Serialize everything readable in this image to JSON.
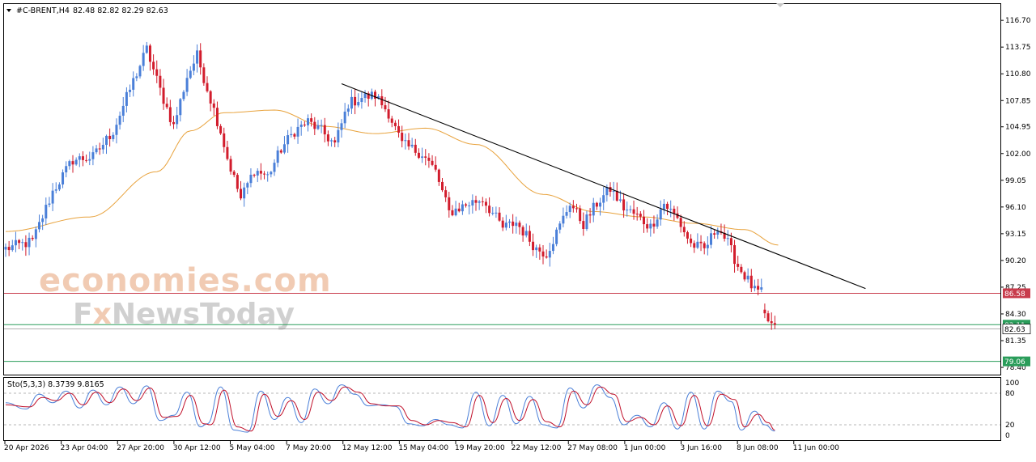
{
  "header": {
    "symbol": "#C-BRENT,H4",
    "ohlc": "82.48 82.82 82.29 82.63",
    "dropdown_icon": "triangle-down-icon"
  },
  "watermark": {
    "line1": "economies.com",
    "line2": "FxNewsToday",
    "line2_prefix": "F",
    "line2_mark": "x",
    "line2_rest": "NewsToday"
  },
  "oscillator": {
    "label": "Sto(5,3,3) 8.3739 9.8165",
    "levels": [
      80,
      20
    ],
    "ticks": [
      "100",
      "80",
      "20",
      "0"
    ],
    "colors": {
      "main": "#4a7fd8",
      "signal": "#c0102a",
      "level_line": "#a0a0a0"
    }
  },
  "colors": {
    "bull": "#4a7fd8",
    "bear": "#d21c2c",
    "ma": "#e8a23c",
    "trendline": "#000000",
    "resistance": "#c83c4c",
    "support": "#2a9d5a",
    "price_line": "#808080"
  },
  "chart_data": {
    "type": "candlestick",
    "title": "#C-BRENT,H4",
    "price_axis_labels": [
      "116.70",
      "113.75",
      "110.80",
      "107.85",
      "104.95",
      "102.00",
      "99.05",
      "96.10",
      "93.15",
      "90.20",
      "87.25",
      "84.30",
      "81.35",
      "78.40"
    ],
    "ylim": [
      77.6,
      118.5
    ],
    "x_labels": [
      "20 Apr 2026",
      "23 Apr 04:00",
      "27 Apr 20:00",
      "30 Apr 12:00",
      "5 May 04:00",
      "7 May 20:00",
      "12 May 12:00",
      "15 May 04:00",
      "19 May 20:00",
      "22 May 12:00",
      "27 May 08:00",
      "1 Jun 00:00",
      "3 Jun 16:00",
      "8 Jun 08:00",
      "11 Jun 00:00"
    ],
    "current_price": 82.63,
    "horizontal_levels": [
      {
        "label": "86.58",
        "value": 86.58,
        "kind": "resistance"
      },
      {
        "label": "83.11",
        "value": 83.11,
        "kind": "support"
      },
      {
        "label": "79.06",
        "value": 79.06,
        "kind": "support"
      }
    ],
    "current_price_label": "82.63",
    "trendline": {
      "from": [
        100,
        109.7
      ],
      "to": [
        256,
        87.1
      ]
    },
    "anchors": [
      [
        0,
        91.5
      ],
      [
        8,
        92.3
      ],
      [
        14,
        97.8
      ],
      [
        20,
        101.3
      ],
      [
        26,
        101.6
      ],
      [
        32,
        104.5
      ],
      [
        38,
        110.0
      ],
      [
        42,
        113.5
      ],
      [
        46,
        109.0
      ],
      [
        50,
        105.0
      ],
      [
        54,
        110.5
      ],
      [
        57,
        112.8
      ],
      [
        61,
        108.0
      ],
      [
        64,
        104.5
      ],
      [
        66,
        101.5
      ],
      [
        70,
        97.0
      ],
      [
        74,
        100.2
      ],
      [
        78,
        99.5
      ],
      [
        82,
        102.5
      ],
      [
        86,
        104.5
      ],
      [
        90,
        105.5
      ],
      [
        94,
        104.5
      ],
      [
        98,
        103.0
      ],
      [
        102,
        107.5
      ],
      [
        106,
        108.2
      ],
      [
        110,
        108.4
      ],
      [
        114,
        106.5
      ],
      [
        118,
        103.0
      ],
      [
        124,
        102.0
      ],
      [
        128,
        100.0
      ],
      [
        132,
        95.5
      ],
      [
        138,
        96.5
      ],
      [
        142,
        97.0
      ],
      [
        148,
        93.8
      ],
      [
        152,
        94.4
      ],
      [
        158,
        91.5
      ],
      [
        161,
        91.0
      ],
      [
        165,
        94.0
      ],
      [
        168,
        96.6
      ],
      [
        172,
        94.2
      ],
      [
        176,
        96.5
      ],
      [
        180,
        98.1
      ],
      [
        184,
        96.0
      ],
      [
        188,
        95.1
      ],
      [
        192,
        93.9
      ],
      [
        196,
        96.5
      ],
      [
        200,
        94.8
      ],
      [
        204,
        92.0
      ],
      [
        208,
        91.4
      ],
      [
        212,
        94.0
      ],
      [
        215,
        92.1
      ],
      [
        218,
        89.6
      ],
      [
        221,
        88.0
      ],
      [
        223,
        86.8
      ],
      [
        225,
        86.6
      ],
      [
        226,
        84.0
      ],
      [
        229,
        82.6
      ]
    ],
    "gap_after_index": 225,
    "ma_series": [
      [
        0,
        93.4
      ],
      [
        25,
        95.0
      ],
      [
        45,
        100.0
      ],
      [
        55,
        104.5
      ],
      [
        65,
        106.5
      ],
      [
        80,
        106.8
      ],
      [
        95,
        105.0
      ],
      [
        110,
        104.2
      ],
      [
        125,
        104.8
      ],
      [
        140,
        103.0
      ],
      [
        160,
        97.5
      ],
      [
        175,
        95.6
      ],
      [
        190,
        95.0
      ],
      [
        205,
        94.3
      ],
      [
        220,
        93.6
      ],
      [
        230,
        91.9
      ]
    ],
    "stochastic": {
      "main": [
        [
          0,
          62
        ],
        [
          6,
          50
        ],
        [
          10,
          78
        ],
        [
          14,
          62
        ],
        [
          18,
          84
        ],
        [
          22,
          52
        ],
        [
          26,
          86
        ],
        [
          30,
          58
        ],
        [
          34,
          92
        ],
        [
          38,
          60
        ],
        [
          42,
          94
        ],
        [
          46,
          28
        ],
        [
          50,
          38
        ],
        [
          54,
          82
        ],
        [
          58,
          16
        ],
        [
          60,
          22
        ],
        [
          64,
          92
        ],
        [
          68,
          10
        ],
        [
          72,
          6
        ],
        [
          76,
          84
        ],
        [
          80,
          30
        ],
        [
          84,
          72
        ],
        [
          88,
          24
        ],
        [
          92,
          88
        ],
        [
          96,
          60
        ],
        [
          100,
          96
        ],
        [
          104,
          78
        ],
        [
          108,
          56
        ],
        [
          112,
          58
        ],
        [
          116,
          55
        ],
        [
          120,
          22
        ],
        [
          124,
          18
        ],
        [
          128,
          30
        ],
        [
          132,
          20
        ],
        [
          136,
          14
        ],
        [
          140,
          82
        ],
        [
          144,
          18
        ],
        [
          148,
          76
        ],
        [
          152,
          22
        ],
        [
          156,
          74
        ],
        [
          160,
          20
        ],
        [
          164,
          14
        ],
        [
          168,
          90
        ],
        [
          172,
          52
        ],
        [
          176,
          96
        ],
        [
          180,
          72
        ],
        [
          184,
          20
        ],
        [
          188,
          38
        ],
        [
          192,
          16
        ],
        [
          196,
          62
        ],
        [
          200,
          12
        ],
        [
          204,
          82
        ],
        [
          208,
          12
        ],
        [
          212,
          84
        ],
        [
          216,
          64
        ],
        [
          219,
          10
        ],
        [
          223,
          46
        ],
        [
          226,
          20
        ],
        [
          229,
          8
        ]
      ],
      "signal": [
        [
          0,
          58
        ],
        [
          7,
          54
        ],
        [
          11,
          72
        ],
        [
          15,
          66
        ],
        [
          19,
          80
        ],
        [
          23,
          58
        ],
        [
          27,
          82
        ],
        [
          31,
          62
        ],
        [
          35,
          88
        ],
        [
          39,
          66
        ],
        [
          43,
          90
        ],
        [
          47,
          34
        ],
        [
          51,
          36
        ],
        [
          55,
          76
        ],
        [
          59,
          22
        ],
        [
          61,
          20
        ],
        [
          65,
          86
        ],
        [
          69,
          16
        ],
        [
          73,
          8
        ],
        [
          77,
          78
        ],
        [
          81,
          36
        ],
        [
          85,
          66
        ],
        [
          89,
          30
        ],
        [
          93,
          82
        ],
        [
          97,
          66
        ],
        [
          101,
          92
        ],
        [
          105,
          82
        ],
        [
          109,
          60
        ],
        [
          113,
          56
        ],
        [
          117,
          56
        ],
        [
          121,
          28
        ],
        [
          125,
          20
        ],
        [
          129,
          28
        ],
        [
          133,
          24
        ],
        [
          137,
          16
        ],
        [
          141,
          76
        ],
        [
          145,
          24
        ],
        [
          149,
          70
        ],
        [
          153,
          28
        ],
        [
          157,
          68
        ],
        [
          161,
          26
        ],
        [
          165,
          16
        ],
        [
          169,
          84
        ],
        [
          173,
          58
        ],
        [
          177,
          92
        ],
        [
          181,
          78
        ],
        [
          185,
          26
        ],
        [
          189,
          34
        ],
        [
          193,
          20
        ],
        [
          197,
          56
        ],
        [
          201,
          18
        ],
        [
          205,
          76
        ],
        [
          209,
          18
        ],
        [
          213,
          78
        ],
        [
          217,
          68
        ],
        [
          220,
          16
        ],
        [
          224,
          40
        ],
        [
          227,
          24
        ],
        [
          229,
          10
        ]
      ]
    }
  }
}
